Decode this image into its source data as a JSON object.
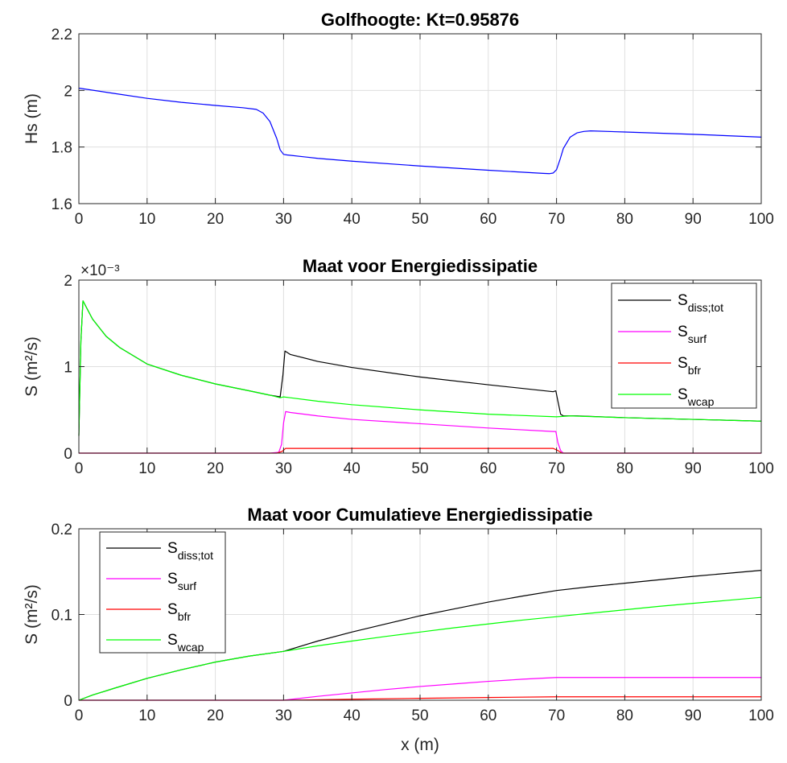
{
  "chart_data": [
    {
      "type": "line",
      "title": "Golfhoogte: Kt=0.95876",
      "xlabel": "",
      "ylabel": "Hs (m)",
      "xlim": [
        0,
        100
      ],
      "ylim": [
        1.6,
        2.2
      ],
      "grid": true,
      "xticks": [
        "0",
        "10",
        "20",
        "30",
        "40",
        "50",
        "60",
        "70",
        "80",
        "90",
        "100"
      ],
      "yticks": [
        "1.6",
        "1.8",
        "2",
        "2.2"
      ],
      "series": [
        {
          "color": "#0000ff",
          "x": [
            0,
            5,
            10,
            15,
            20,
            24,
            26,
            27,
            28,
            29,
            29.5,
            30,
            30.5,
            35,
            40,
            50,
            60,
            68,
            69,
            69.5,
            70,
            70.5,
            71,
            72,
            73,
            74,
            75,
            80,
            90,
            100
          ],
          "y": [
            2.008,
            1.99,
            1.972,
            1.958,
            1.947,
            1.939,
            1.933,
            1.92,
            1.89,
            1.83,
            1.79,
            1.774,
            1.772,
            1.76,
            1.75,
            1.733,
            1.718,
            1.707,
            1.706,
            1.708,
            1.72,
            1.755,
            1.795,
            1.835,
            1.85,
            1.855,
            1.857,
            1.853,
            1.845,
            1.835
          ]
        }
      ]
    },
    {
      "type": "line",
      "title": "Maat voor Energiedissipatie",
      "xlabel": "",
      "ylabel": "S (m²/s)",
      "exponent_label": "×10⁻³",
      "xlim": [
        0,
        100
      ],
      "ylim": [
        0,
        2
      ],
      "grid": true,
      "legend_position": "top-right",
      "xticks": [
        "0",
        "10",
        "20",
        "30",
        "40",
        "50",
        "60",
        "70",
        "80",
        "90",
        "100"
      ],
      "yticks": [
        "0",
        "1",
        "2"
      ],
      "series": [
        {
          "legend_main": "S",
          "legend_sub": "diss;tot",
          "color": "#000000",
          "x": [
            0,
            0.3,
            0.6,
            1,
            2,
            4,
            6,
            10,
            15,
            20,
            25,
            28,
            29.5,
            29.9,
            30.2,
            31,
            35,
            40,
            50,
            60,
            69.5,
            69.9,
            70.2,
            70.6,
            71,
            72,
            73,
            80,
            90,
            100
          ],
          "y": [
            0.2,
            1.3,
            1.76,
            1.7,
            1.55,
            1.35,
            1.22,
            1.03,
            0.9,
            0.8,
            0.72,
            0.67,
            0.65,
            0.9,
            1.18,
            1.14,
            1.06,
            0.99,
            0.88,
            0.79,
            0.71,
            0.72,
            0.6,
            0.45,
            0.43,
            0.43,
            0.43,
            0.41,
            0.39,
            0.37
          ]
        },
        {
          "legend_main": "S",
          "legend_sub": "surf",
          "color": "#ff00ff",
          "x": [
            0,
            28,
            29.3,
            29.7,
            30,
            30.3,
            31,
            35,
            40,
            50,
            60,
            69.5,
            69.9,
            70.2,
            70.6,
            71,
            100
          ],
          "y": [
            0,
            0,
            0.01,
            0.1,
            0.35,
            0.48,
            0.47,
            0.43,
            0.39,
            0.34,
            0.29,
            0.25,
            0.25,
            0.12,
            0.03,
            0,
            0
          ]
        },
        {
          "legend_main": "S",
          "legend_sub": "bfr",
          "color": "#ff0000",
          "x": [
            0,
            29,
            29.8,
            30.3,
            40,
            69.5,
            70.2,
            70.8,
            100
          ],
          "y": [
            0,
            0,
            0.02,
            0.055,
            0.055,
            0.055,
            0.03,
            0,
            0
          ]
        },
        {
          "legend_main": "S",
          "legend_sub": "wcap",
          "color": "#00ff00",
          "x": [
            0,
            0.3,
            0.6,
            1,
            2,
            4,
            6,
            10,
            15,
            20,
            25,
            28,
            29.5,
            30,
            31,
            35,
            40,
            50,
            60,
            70,
            72,
            80,
            90,
            100
          ],
          "y": [
            0.2,
            1.3,
            1.76,
            1.7,
            1.55,
            1.35,
            1.22,
            1.03,
            0.9,
            0.8,
            0.72,
            0.67,
            0.64,
            0.65,
            0.64,
            0.6,
            0.56,
            0.5,
            0.45,
            0.42,
            0.43,
            0.41,
            0.39,
            0.37
          ]
        }
      ]
    },
    {
      "type": "line",
      "title": "Maat voor Cumulatieve Energiedissipatie",
      "xlabel": "x (m)",
      "ylabel": "S (m²/s)",
      "xlim": [
        0,
        100
      ],
      "ylim": [
        0,
        0.2
      ],
      "grid": true,
      "legend_position": "top-left",
      "xticks": [
        "0",
        "10",
        "20",
        "30",
        "40",
        "50",
        "60",
        "70",
        "80",
        "90",
        "100"
      ],
      "yticks": [
        "0",
        "0.1",
        "0.2"
      ],
      "series": [
        {
          "legend_main": "S",
          "legend_sub": "diss;tot",
          "color": "#000000",
          "x": [
            0,
            2,
            5,
            10,
            15,
            20,
            25,
            30,
            35,
            40,
            45,
            50,
            55,
            60,
            65,
            70,
            75,
            80,
            85,
            90,
            95,
            100
          ],
          "y": [
            0,
            0.006,
            0.0135,
            0.0255,
            0.0355,
            0.0445,
            0.0515,
            0.057,
            0.069,
            0.0795,
            0.089,
            0.0985,
            0.1065,
            0.1145,
            0.1215,
            0.128,
            0.1325,
            0.1365,
            0.1405,
            0.1445,
            0.148,
            0.1515
          ]
        },
        {
          "legend_main": "S",
          "legend_sub": "surf",
          "color": "#ff00ff",
          "x": [
            0,
            30,
            35,
            40,
            45,
            50,
            55,
            60,
            65,
            70,
            100
          ],
          "y": [
            0,
            0,
            0.0045,
            0.0085,
            0.0125,
            0.016,
            0.019,
            0.022,
            0.0245,
            0.0265,
            0.0265
          ]
        },
        {
          "legend_main": "S",
          "legend_sub": "bfr",
          "color": "#ff0000",
          "x": [
            0,
            30,
            40,
            50,
            60,
            70,
            100
          ],
          "y": [
            0,
            0,
            0.0012,
            0.0022,
            0.0032,
            0.004,
            0.004
          ]
        },
        {
          "legend_main": "S",
          "legend_sub": "wcap",
          "color": "#00ff00",
          "x": [
            0,
            2,
            5,
            10,
            15,
            20,
            25,
            30,
            35,
            40,
            45,
            50,
            55,
            60,
            65,
            70,
            75,
            80,
            85,
            90,
            95,
            100
          ],
          "y": [
            0,
            0.006,
            0.0135,
            0.0255,
            0.0355,
            0.0445,
            0.0515,
            0.057,
            0.0635,
            0.069,
            0.0745,
            0.0795,
            0.0845,
            0.089,
            0.0935,
            0.0975,
            0.1015,
            0.1055,
            0.1095,
            0.113,
            0.1165,
            0.12
          ]
        }
      ]
    }
  ]
}
